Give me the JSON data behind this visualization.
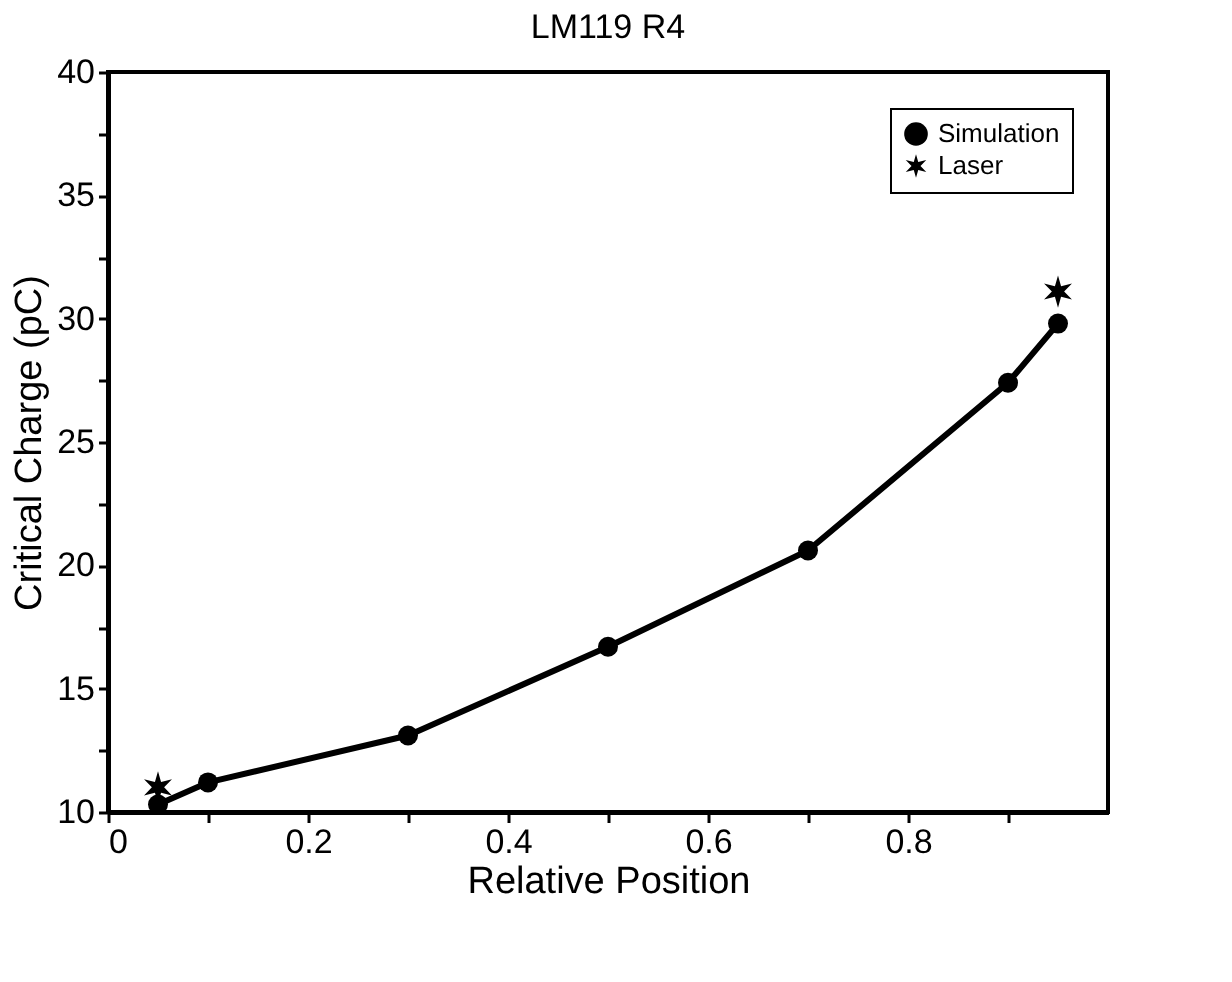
{
  "chart_data": {
    "type": "line",
    "title": "LM119 R4",
    "xlabel": "Relative Position",
    "ylabel": "Critical Charge (pC)",
    "xlim": [
      0,
      1
    ],
    "ylim": [
      10,
      40
    ],
    "xticks": [
      0,
      {
        "value": 0.1,
        "label": null
      },
      0.2,
      {
        "value": 0.3,
        "label": null
      },
      0.4,
      {
        "value": 0.5,
        "label": null
      },
      0.6,
      {
        "value": 0.7,
        "label": null
      },
      0.8,
      {
        "value": 0.9,
        "label": null
      }
    ],
    "yticks": [
      10,
      {
        "value": 12.5,
        "label": null
      },
      15,
      {
        "value": 17.5,
        "label": null
      },
      20,
      {
        "value": 22.5,
        "label": null
      },
      25,
      {
        "value": 27.5,
        "label": null
      },
      30,
      {
        "value": 32.5,
        "label": null
      },
      35,
      {
        "value": 37.5,
        "label": null
      },
      40
    ],
    "grid": false,
    "legend": "top right",
    "series": [
      {
        "name": "Simulation",
        "type": "line",
        "marker": "circle",
        "color": "#000000",
        "x": [
          0.05,
          0.1,
          0.3,
          0.5,
          0.7,
          0.9,
          0.95
        ],
        "values": [
          10.3,
          11.2,
          13.1,
          16.7,
          20.6,
          27.4,
          29.8
        ]
      },
      {
        "name": "Laser",
        "type": "scatter",
        "marker": "cross",
        "color": "#000000",
        "x": [
          0.05,
          0.95
        ],
        "values": [
          11.0,
          31.1
        ]
      }
    ]
  }
}
